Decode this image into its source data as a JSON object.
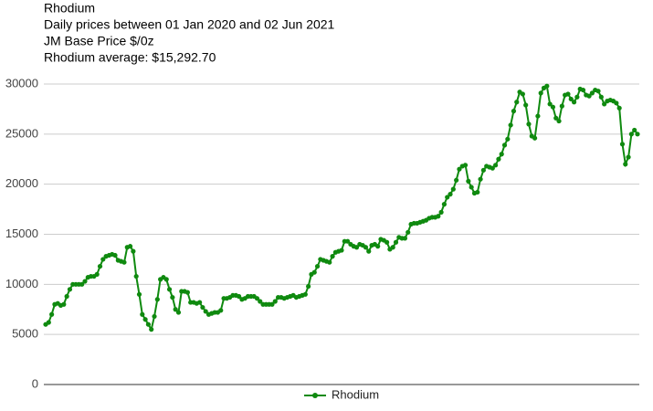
{
  "chart_data": {
    "type": "line",
    "title": "Rhodium",
    "subtitle": "Daily prices between 01 Jan 2020 and 02 Jun 2021",
    "annotations": [
      "JM Base Price $/0z",
      "Rhodium average: $15,292.70"
    ],
    "ylim": [
      0,
      30000
    ],
    "yticks": [
      0,
      5000,
      10000,
      15000,
      20000,
      25000,
      30000
    ],
    "grid": true,
    "legend": "bottom",
    "series": [
      {
        "name": "Rhodium",
        "color": "#0f8a0f",
        "values": [
          6000,
          6200,
          7000,
          8000,
          8100,
          7900,
          8000,
          8800,
          9500,
          10000,
          10000,
          10000,
          10000,
          10300,
          10700,
          10800,
          10800,
          11000,
          11800,
          12500,
          12800,
          12900,
          13000,
          12900,
          12400,
          12300,
          12200,
          13700,
          13800,
          13300,
          10800,
          9000,
          7000,
          6500,
          6000,
          5500,
          6800,
          8500,
          10500,
          10700,
          10500,
          9500,
          8700,
          7500,
          7200,
          9300,
          9300,
          9200,
          8200,
          8200,
          8100,
          8200,
          7700,
          7300,
          7000,
          7100,
          7200,
          7200,
          7400,
          8600,
          8600,
          8700,
          8900,
          8900,
          8800,
          8500,
          8600,
          8800,
          8800,
          8800,
          8600,
          8300,
          8000,
          8000,
          8000,
          8000,
          8300,
          8700,
          8700,
          8600,
          8700,
          8800,
          8900,
          8700,
          8800,
          8900,
          9000,
          9800,
          11000,
          11200,
          11800,
          12500,
          12400,
          12300,
          12200,
          12800,
          13200,
          13300,
          13400,
          14300,
          14300,
          14000,
          13800,
          13700,
          14000,
          13900,
          13700,
          13300,
          13900,
          14000,
          13800,
          14500,
          14400,
          14200,
          13500,
          13700,
          14200,
          14700,
          14600,
          14600,
          15200,
          16000,
          16100,
          16100,
          16200,
          16300,
          16400,
          16600,
          16700,
          16700,
          16800,
          17200,
          18000,
          18700,
          19000,
          19500,
          20400,
          21500,
          21800,
          21900,
          20300,
          19700,
          19100,
          19200,
          20500,
          21400,
          21800,
          21700,
          21600,
          21900,
          22500,
          23000,
          23900,
          24500,
          25900,
          27300,
          28200,
          29200,
          29000,
          27900,
          26000,
          24800,
          24600,
          26800,
          29100,
          29600,
          29800,
          28000,
          27700,
          26600,
          26300,
          27800,
          28900,
          29000,
          28500,
          28200,
          28700,
          29500,
          29400,
          28900,
          28800,
          29100,
          29400,
          29300,
          28700,
          28000,
          28300,
          28400,
          28300,
          28100,
          27600,
          24000,
          22000,
          22700,
          25000,
          25400,
          25000
        ]
      }
    ]
  }
}
